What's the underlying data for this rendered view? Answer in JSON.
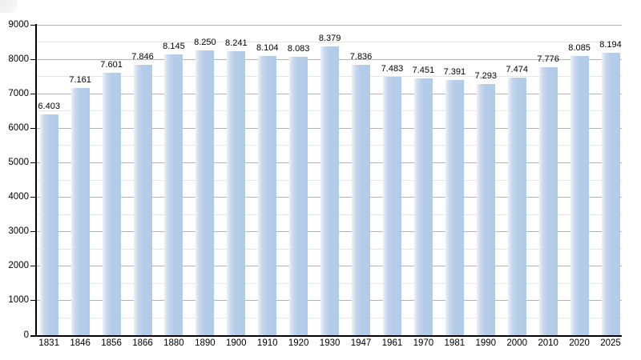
{
  "page": {
    "background": "#ffffff"
  },
  "chart_data": {
    "type": "bar",
    "title": "",
    "xlabel": "",
    "ylabel": "",
    "categories": [
      "1831",
      "1846",
      "1856",
      "1866",
      "1880",
      "1890",
      "1900",
      "1910",
      "1920",
      "1930",
      "1947",
      "1961",
      "1970",
      "1981",
      "1990",
      "2000",
      "2010",
      "2020",
      "2025"
    ],
    "values": [
      6403,
      7161,
      7601,
      7846,
      8145,
      8250,
      8241,
      8104,
      8083,
      8379,
      7836,
      7483,
      7451,
      7391,
      7293,
      7474,
      7776,
      8085,
      8194
    ],
    "value_labels": [
      "6.403",
      "7.161",
      "7.601",
      "7.846",
      "8.145",
      "8.250",
      "8.241",
      "8.104",
      "8.083",
      "8.379",
      "7.836",
      "7.483",
      "7.451",
      "7.391",
      "7.293",
      "7.474",
      "7.776",
      "8.085",
      "8.194"
    ],
    "ylim": [
      0,
      9000
    ],
    "ytick_step": 1000,
    "ytick_labels": [
      "0",
      "1000",
      "2000",
      "3000",
      "4000",
      "5000",
      "6000",
      "7000",
      "8000",
      "9000"
    ],
    "minor_grid_step": 500,
    "grid": true,
    "legend_position": "none",
    "colors": {
      "bar_fill": "#b3cce8",
      "bar_edge_highlight": "#e9f1f9",
      "major_gridline": "#b3b3b3",
      "minor_gridline": "#e5e5e5",
      "axis": "#000000",
      "text": "#000000",
      "background": "#ffffff"
    }
  }
}
